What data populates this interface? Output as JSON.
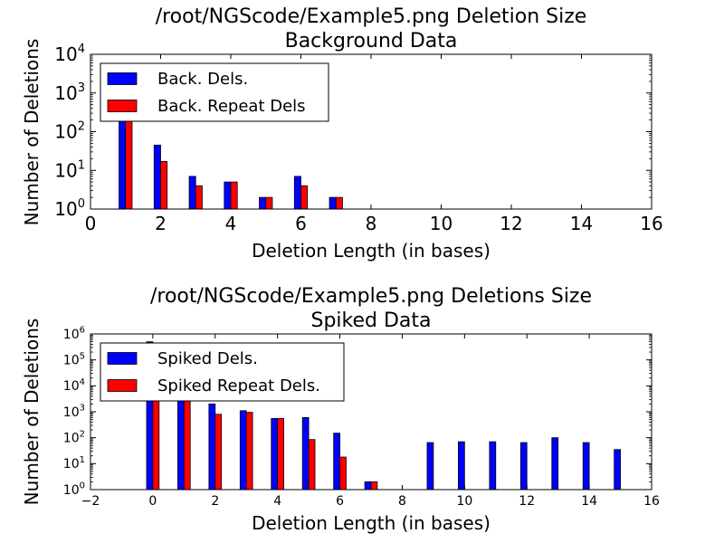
{
  "chart_data": [
    {
      "type": "bar",
      "title_line1": "/root/NGScode/Example5.png Deletion Size",
      "title_line2": "Background Data",
      "xlabel": "Deletion Length (in bases)",
      "ylabel": "Number of Deletions",
      "xlim": [
        0,
        16
      ],
      "ylim": [
        1,
        10000
      ],
      "yscale": "log",
      "xticks": [
        "0",
        "2",
        "4",
        "6",
        "8",
        "10",
        "12",
        "14",
        "16"
      ],
      "yticks": [
        {
          "base": "10",
          "exp": "0"
        },
        {
          "base": "10",
          "exp": "1"
        },
        {
          "base": "10",
          "exp": "2"
        },
        {
          "base": "10",
          "exp": "3"
        },
        {
          "base": "10",
          "exp": "4"
        }
      ],
      "legend_position": "top-left",
      "series": [
        {
          "name": "Back. Dels.",
          "color": "#0000ff",
          "x": [
            1,
            2,
            3,
            4,
            5,
            6,
            7
          ],
          "values": [
            500,
            45,
            7,
            5,
            2,
            7,
            2
          ]
        },
        {
          "name": "Back. Repeat Dels",
          "color": "#ff0000",
          "x": [
            1,
            2,
            3,
            4,
            5,
            6,
            7
          ],
          "values": [
            300,
            17,
            4,
            5,
            2,
            4,
            2
          ]
        }
      ]
    },
    {
      "type": "bar",
      "title_line1": "/root/NGScode/Example5.png Deletions Size",
      "title_line2": "Spiked Data",
      "xlabel": "Deletion Length (in bases)",
      "ylabel": "Number of Deletions",
      "xlim": [
        -2,
        16
      ],
      "ylim": [
        1,
        1000000
      ],
      "yscale": "log",
      "xticks": [
        "−2",
        "0",
        "2",
        "4",
        "6",
        "8",
        "10",
        "12",
        "14",
        "16"
      ],
      "yticks": [
        {
          "base": "10",
          "exp": "0"
        },
        {
          "base": "10",
          "exp": "1"
        },
        {
          "base": "10",
          "exp": "2"
        },
        {
          "base": "10",
          "exp": "3"
        },
        {
          "base": "10",
          "exp": "4"
        },
        {
          "base": "10",
          "exp": "5"
        },
        {
          "base": "10",
          "exp": "6"
        }
      ],
      "legend_position": "top-left",
      "series": [
        {
          "name": "Spiked Dels.",
          "color": "#0000ff",
          "x": [
            0,
            1,
            2,
            3,
            4,
            5,
            6,
            7,
            9,
            10,
            11,
            12,
            13,
            14,
            15
          ],
          "values": [
            500000,
            5000,
            2000,
            1100,
            550,
            600,
            150,
            2,
            65,
            70,
            70,
            65,
            100,
            65,
            35
          ]
        },
        {
          "name": "Spiked Repeat Dels.",
          "color": "#ff0000",
          "x": [
            0,
            1,
            2,
            3,
            4,
            5,
            6,
            7
          ],
          "values": [
            5000,
            5000,
            800,
            950,
            550,
            85,
            18,
            2
          ]
        }
      ]
    }
  ]
}
